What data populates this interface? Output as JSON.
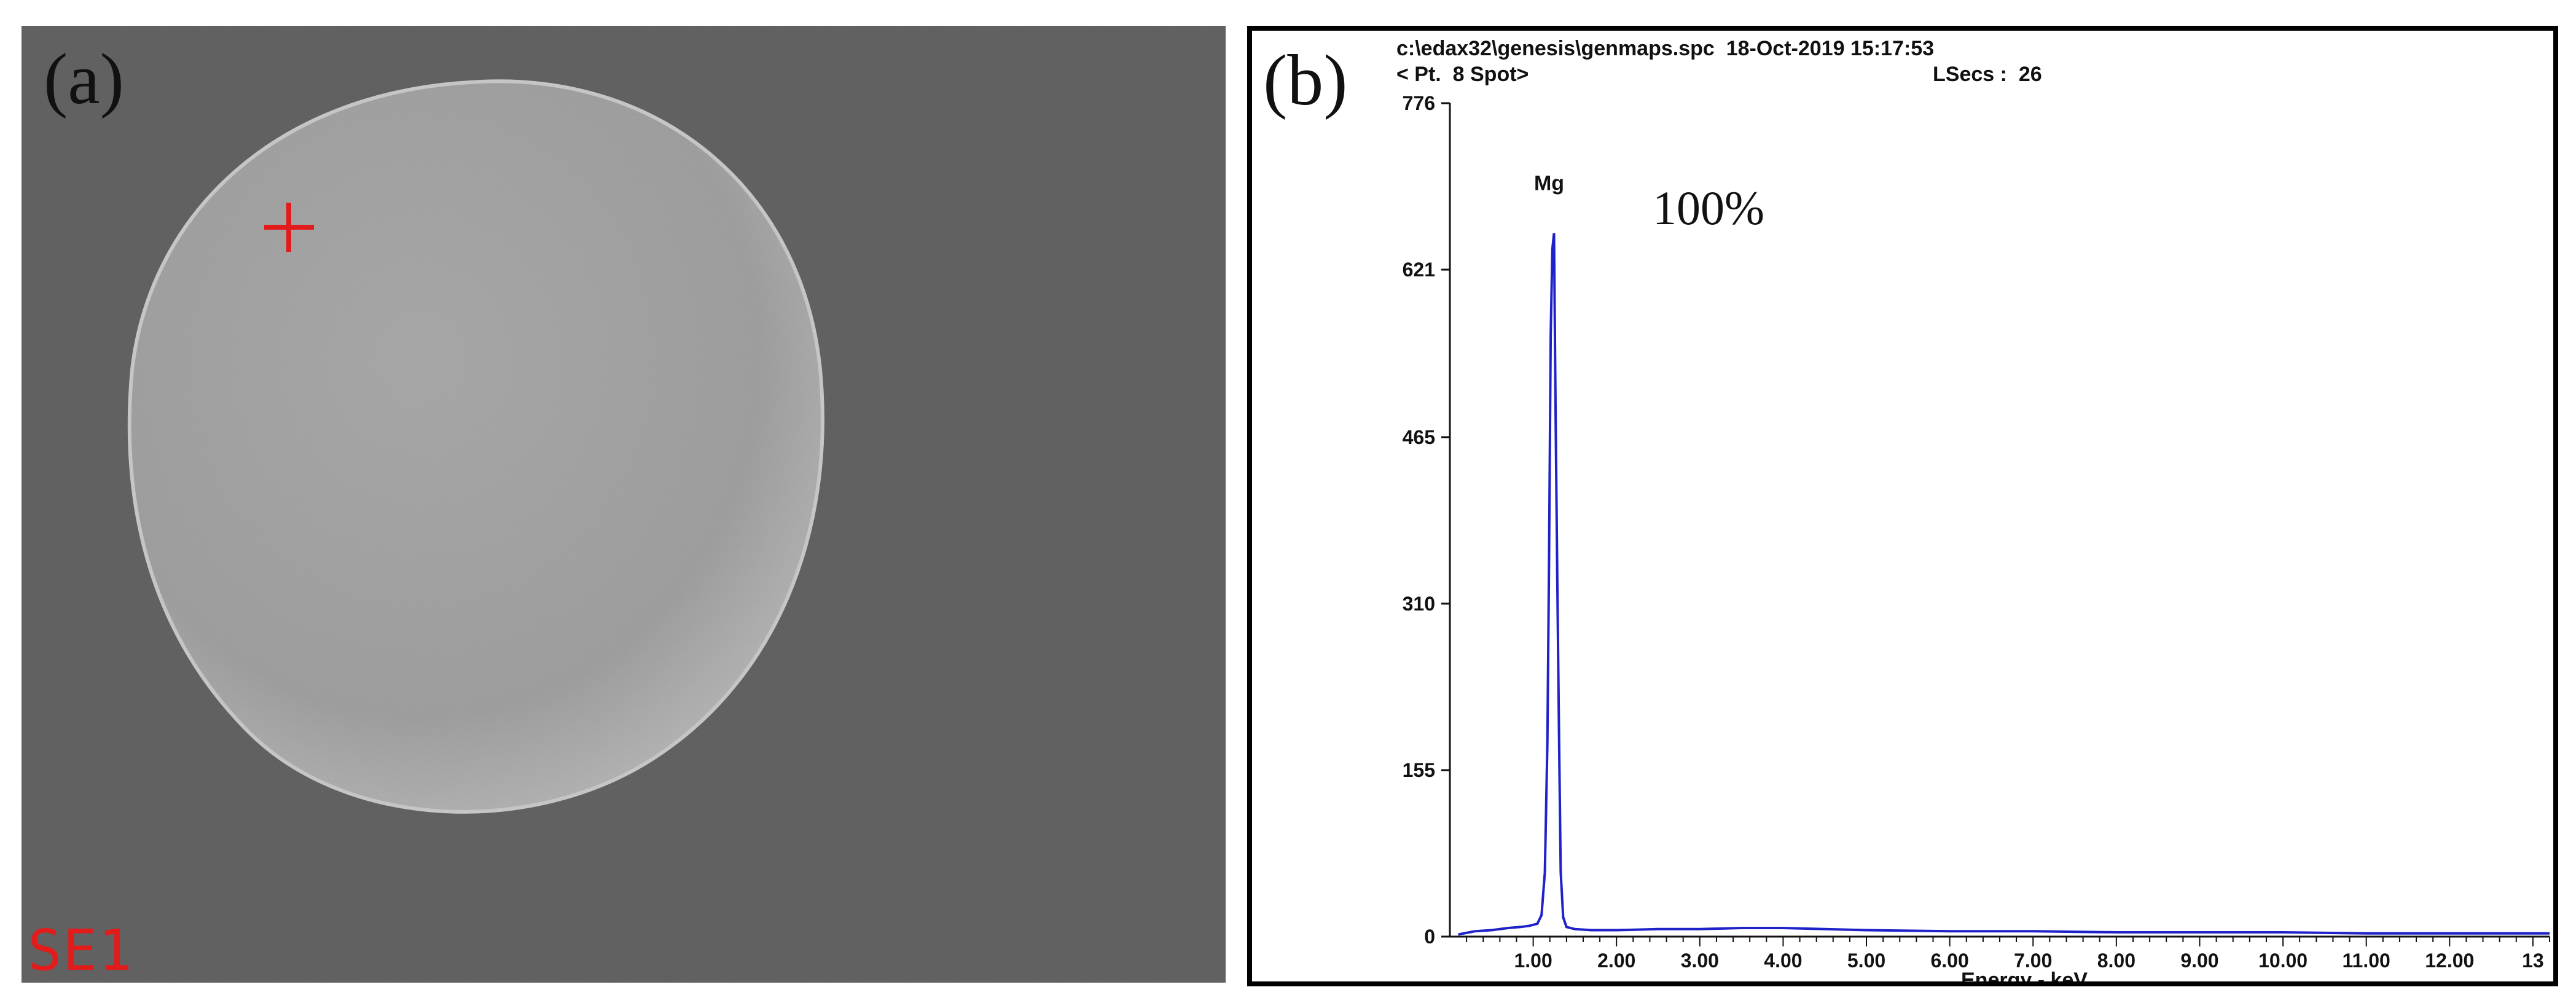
{
  "panel_a": {
    "letter": "(a)",
    "detector": "SE1",
    "colors": {
      "background": "#5b5b5b",
      "particle": "#a9a9a9",
      "marker": "#e21b1b"
    }
  },
  "panel_b": {
    "letter": "(b)",
    "file_line": "c:\\edax32\\genesis\\genmaps.spc  18-Oct-2019 15:17:53",
    "spot_line": "< Pt.  8 Spot>",
    "lsecs_line": "LSecs :  26",
    "composition": "100%"
  },
  "chart_data": {
    "type": "line",
    "title": "",
    "xlabel": "Energy - keV",
    "ylabel": "",
    "xlim": [
      0,
      13.2
    ],
    "ylim": [
      0,
      776
    ],
    "x_ticks": [
      "1.00",
      "2.00",
      "3.00",
      "4.00",
      "5.00",
      "6.00",
      "7.00",
      "8.00",
      "9.00",
      "10.00",
      "11.00",
      "12.00",
      "13"
    ],
    "x_tick_values": [
      1,
      2,
      3,
      4,
      5,
      6,
      7,
      8,
      9,
      10,
      11,
      12,
      13
    ],
    "y_ticks": [
      "0",
      "155",
      "310",
      "465",
      "621",
      "776"
    ],
    "y_tick_values": [
      0,
      155,
      310,
      465,
      621,
      776
    ],
    "line_color": "#1f22c9",
    "peaks": [
      {
        "label": "Mg",
        "x": 1.25,
        "y": 655
      }
    ],
    "series": [
      {
        "x": [
          0.1,
          0.3,
          0.5,
          0.7,
          0.85,
          0.95,
          1.05,
          1.1,
          1.14,
          1.17,
          1.19,
          1.21,
          1.23,
          1.25,
          1.27,
          1.29,
          1.31,
          1.33,
          1.36,
          1.4,
          1.5,
          1.7,
          2.0,
          2.5,
          3.0,
          3.5,
          4.0,
          4.5,
          5.0,
          6.0,
          7.0,
          8.0,
          9.0,
          10.0,
          11.0,
          12.0,
          13.0,
          13.2
        ],
        "values": [
          2,
          5,
          6,
          8,
          9,
          10,
          12,
          20,
          60,
          180,
          350,
          560,
          640,
          655,
          480,
          330,
          190,
          60,
          18,
          9,
          7,
          6,
          6,
          7,
          7,
          8,
          8,
          7,
          6,
          5,
          5,
          4,
          4,
          4,
          3,
          3,
          3,
          3
        ]
      }
    ]
  }
}
